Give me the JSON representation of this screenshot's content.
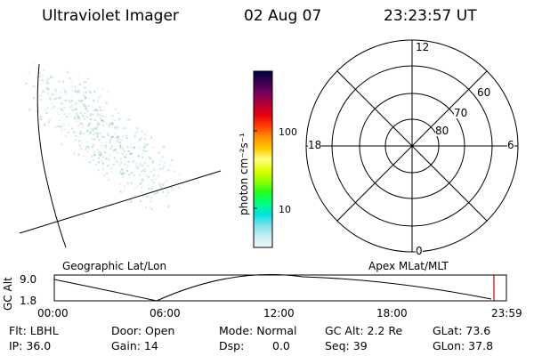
{
  "header": {
    "instrument": "Ultraviolet Imager",
    "date": "02 Aug 07",
    "time": "23:23:57 UT"
  },
  "colorbar": {
    "label": "photon cm⁻²s⁻¹",
    "ticks": [
      "100",
      "10"
    ],
    "scale": "log",
    "colors": [
      "#000040",
      "#3a0050",
      "#7a0060",
      "#b40030",
      "#e80010",
      "#ff4000",
      "#ff9000",
      "#ffc800",
      "#ffff80",
      "#e0ff00",
      "#90ff00",
      "#20ff20",
      "#00ff80",
      "#00e0e0",
      "#80e0e8",
      "#c8eef0",
      "#f0f8f8"
    ]
  },
  "polar_plot": {
    "labels": {
      "top": "12",
      "left": "18",
      "right": "6",
      "bottom": "0"
    },
    "rings": [
      "60",
      "70",
      "80"
    ]
  },
  "altitude_plot": {
    "ylabel": "GC Alt",
    "yticks": [
      "9.0",
      "1.8"
    ],
    "left_title": "Geographic Lat/Lon",
    "right_title": "Apex MLat/MLT",
    "xticks": [
      "00:00",
      "06:00",
      "12:00",
      "18:00",
      "23:59"
    ],
    "marker_color": "#c00000"
  },
  "info": {
    "row1": {
      "filter": "Flt: LBHL",
      "door": "Door: Open",
      "mode": "Mode: Normal",
      "gc_alt": "GC Alt: 2.2 Re",
      "glat": "GLat: 73.6"
    },
    "row2": {
      "ip": "IP: 36.0",
      "gain": "Gain: 14",
      "dsp": "Dsp:",
      "dsp_value": "0.0",
      "seq": "Seq: 39",
      "glon": "GLon: 37.8"
    }
  }
}
